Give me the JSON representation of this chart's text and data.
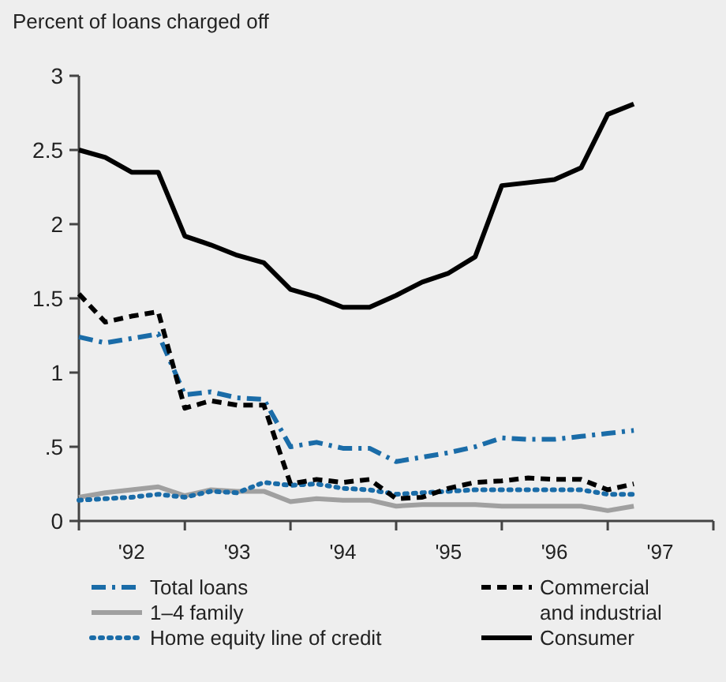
{
  "chart_data": {
    "type": "line",
    "ylabel": "Percent of loans charged off",
    "x": [
      "1992-01",
      "1992-04",
      "1992-07",
      "1992-10",
      "1993-01",
      "1993-04",
      "1993-07",
      "1993-10",
      "1994-01",
      "1994-04",
      "1994-07",
      "1994-10",
      "1995-01",
      "1995-04",
      "1995-07",
      "1995-10",
      "1996-01",
      "1996-04",
      "1996-07",
      "1996-10",
      "1997-01",
      "1997-04"
    ],
    "xlim": [
      "1992-01",
      "1998-01"
    ],
    "xticks": [
      {
        "value": "1992-01",
        "label": null
      },
      {
        "value": "1992-07",
        "label": "'92"
      },
      {
        "value": "1993-01",
        "label": null
      },
      {
        "value": "1993-07",
        "label": "'93"
      },
      {
        "value": "1994-01",
        "label": null
      },
      {
        "value": "1994-07",
        "label": "'94"
      },
      {
        "value": "1995-01",
        "label": null
      },
      {
        "value": "1995-07",
        "label": "'95"
      },
      {
        "value": "1996-01",
        "label": null
      },
      {
        "value": "1996-07",
        "label": "'96"
      },
      {
        "value": "1997-01",
        "label": null
      },
      {
        "value": "1997-07",
        "label": "'97"
      },
      {
        "value": "1998-01",
        "label": null
      }
    ],
    "ylim": [
      0,
      3
    ],
    "yticks": [
      0,
      {
        "value": 0.5,
        "label": ".5"
      },
      1,
      1.5,
      2,
      2.5,
      3
    ],
    "grid": false,
    "legend": "bottom",
    "marker": "none",
    "series": [
      {
        "name": "Total loans",
        "color": "#1a6ca8",
        "line_style": "dashdot",
        "values": [
          1.24,
          1.2,
          1.23,
          1.26,
          0.85,
          0.87,
          0.83,
          0.82,
          0.5,
          0.53,
          0.49,
          0.49,
          0.4,
          0.43,
          0.46,
          0.5,
          0.56,
          0.55,
          0.55,
          0.57,
          0.59,
          0.61
        ]
      },
      {
        "name": "1–4 family",
        "color": "#a0a0a0",
        "line_style": "solid",
        "values": [
          0.16,
          0.19,
          0.21,
          0.23,
          0.17,
          0.21,
          0.2,
          0.2,
          0.13,
          0.15,
          0.14,
          0.14,
          0.1,
          0.11,
          0.11,
          0.11,
          0.1,
          0.1,
          0.1,
          0.1,
          0.07,
          0.1
        ]
      },
      {
        "name": "Home equity line of credit",
        "color": "#1a6ca8",
        "line_style": "dotted",
        "values": [
          0.14,
          0.15,
          0.16,
          0.18,
          0.16,
          0.2,
          0.19,
          0.26,
          0.24,
          0.25,
          0.22,
          0.21,
          0.18,
          0.19,
          0.2,
          0.21,
          0.21,
          0.21,
          0.21,
          0.21,
          0.18,
          0.18
        ]
      },
      {
        "name": "Commercial and industrial",
        "color": "#000000",
        "line_style": "dashed",
        "values": [
          1.53,
          1.34,
          1.38,
          1.41,
          0.76,
          0.81,
          0.78,
          0.78,
          0.25,
          0.28,
          0.26,
          0.28,
          0.15,
          0.16,
          0.22,
          0.26,
          0.27,
          0.29,
          0.28,
          0.28,
          0.21,
          0.25
        ]
      },
      {
        "name": "Consumer",
        "color": "#000000",
        "line_style": "solid",
        "values": [
          2.5,
          2.45,
          2.35,
          2.35,
          1.92,
          1.86,
          1.79,
          1.74,
          1.56,
          1.51,
          1.44,
          1.44,
          1.52,
          1.61,
          1.67,
          1.78,
          2.26,
          2.28,
          2.3,
          2.38,
          2.74,
          2.81
        ]
      }
    ]
  }
}
